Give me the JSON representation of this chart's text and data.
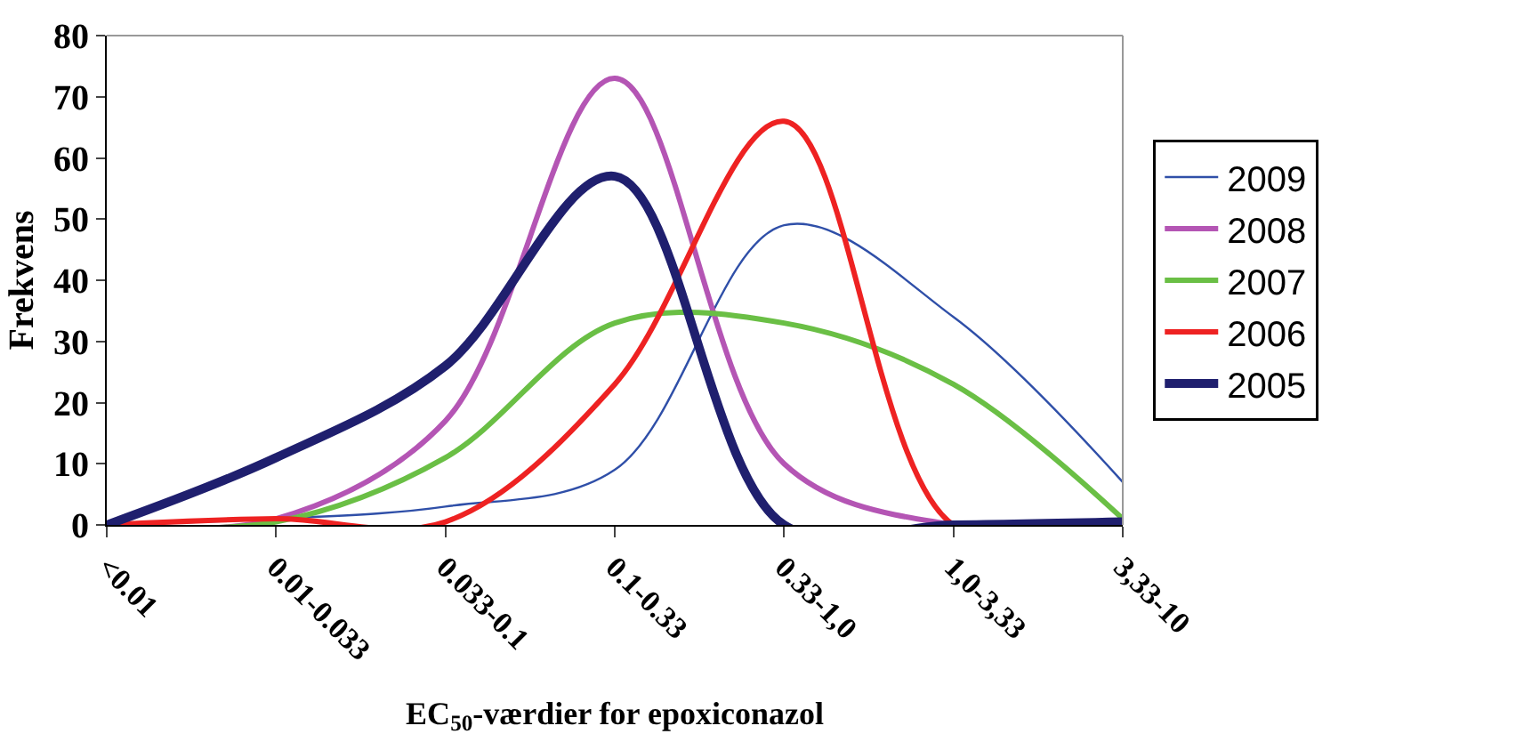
{
  "chart_data": {
    "type": "line",
    "ylabel": "Frekvens",
    "xlabel": "EC$_{50}$-værdier for epoxiconazol",
    "categories": [
      "<0.01",
      "0.01-0.033",
      "0.033-0.1",
      "0.1-0.33",
      "0.33-1,0",
      "1,0-3,33",
      "3,33-10"
    ],
    "ylim": [
      0,
      80
    ],
    "yticks": [
      0,
      10,
      20,
      30,
      40,
      50,
      60,
      70,
      80
    ],
    "grid": false,
    "legend": "right",
    "marker": "none",
    "line_style": "solid",
    "series": [
      {
        "name": "2009",
        "color": "#2f4fa8",
        "values": [
          0,
          1,
          3,
          9,
          49,
          34,
          7
        ]
      },
      {
        "name": "2008",
        "color": "#b455b4",
        "values": [
          0,
          1,
          17,
          73,
          10,
          0,
          0
        ]
      },
      {
        "name": "2007",
        "color": "#6abf45",
        "values": [
          0,
          0.5,
          11,
          33,
          33,
          23,
          1
        ]
      },
      {
        "name": "2006",
        "color": "#ee2222",
        "values": [
          0,
          1,
          0.5,
          23,
          66,
          0,
          0
        ]
      },
      {
        "name": "2005",
        "color": "#1f1f6e",
        "values": [
          0,
          11,
          26,
          57,
          0,
          0,
          0.5
        ]
      }
    ]
  }
}
